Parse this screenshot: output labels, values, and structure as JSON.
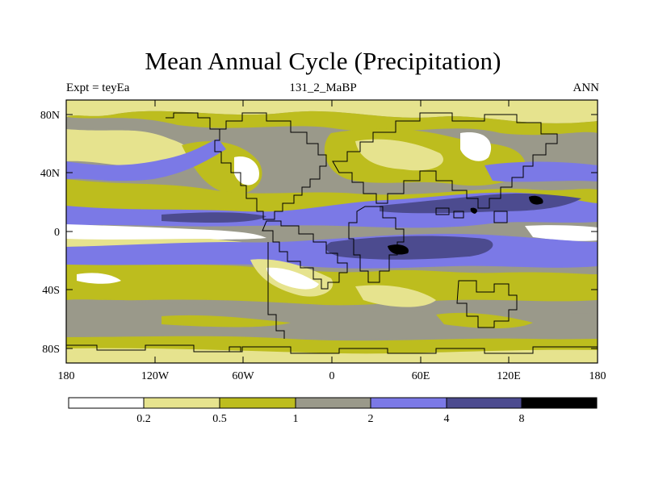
{
  "title": "Mean Annual Cycle (Precipitation)",
  "left_string": "Expt = teyEa",
  "center_string": "131_2_MaBP",
  "right_string": "ANN",
  "lat_labels": [
    "80N",
    "40N",
    "0",
    "40S",
    "80S"
  ],
  "lon_labels": [
    "180",
    "120W",
    "60W",
    "0",
    "60E",
    "120E",
    "180"
  ],
  "colorbar": {
    "labels": [
      "0.2",
      "0.5",
      "1",
      "2",
      "4",
      "8"
    ],
    "colors": [
      "#ffffff",
      "#e6e38e",
      "#bdbd1e",
      "#9a998a",
      "#7b79e6",
      "#4c4b8f",
      "#000000"
    ]
  },
  "map_extent": {
    "lon": [
      -180,
      180
    ],
    "lat": [
      -90,
      90
    ]
  }
}
